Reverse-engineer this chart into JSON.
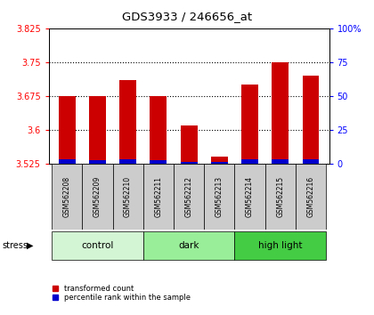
{
  "title": "GDS3933 / 246656_at",
  "samples": [
    "GSM562208",
    "GSM562209",
    "GSM562210",
    "GSM562211",
    "GSM562212",
    "GSM562213",
    "GSM562214",
    "GSM562215",
    "GSM562216"
  ],
  "red_values": [
    3.675,
    3.675,
    3.71,
    3.675,
    3.61,
    3.54,
    3.7,
    3.75,
    3.72
  ],
  "blue_values": [
    3.535,
    3.534,
    3.535,
    3.534,
    3.53,
    3.53,
    3.535,
    3.535,
    3.535
  ],
  "base": 3.525,
  "ymin": 3.525,
  "ymax": 3.825,
  "yticks": [
    3.525,
    3.6,
    3.675,
    3.75,
    3.825
  ],
  "ytick_labels": [
    "3.525",
    "3.6",
    "3.675",
    "3.75",
    "3.825"
  ],
  "right_yticks": [
    0,
    25,
    50,
    75,
    100
  ],
  "right_ytick_labels": [
    "0",
    "25",
    "50",
    "75",
    "100%"
  ],
  "group_colors": [
    "#d4f5d4",
    "#99ee99",
    "#44cc44"
  ],
  "group_labels": [
    "control",
    "dark",
    "high light"
  ],
  "group_ranges": [
    [
      0,
      3
    ],
    [
      3,
      6
    ],
    [
      6,
      9
    ]
  ],
  "bar_width": 0.55,
  "red_color": "#cc0000",
  "blue_color": "#0000cc",
  "label_red": "transformed count",
  "label_blue": "percentile rank within the sample",
  "sample_box_color": "#cccccc",
  "fig_width": 4.2,
  "fig_height": 3.54,
  "dpi": 100
}
